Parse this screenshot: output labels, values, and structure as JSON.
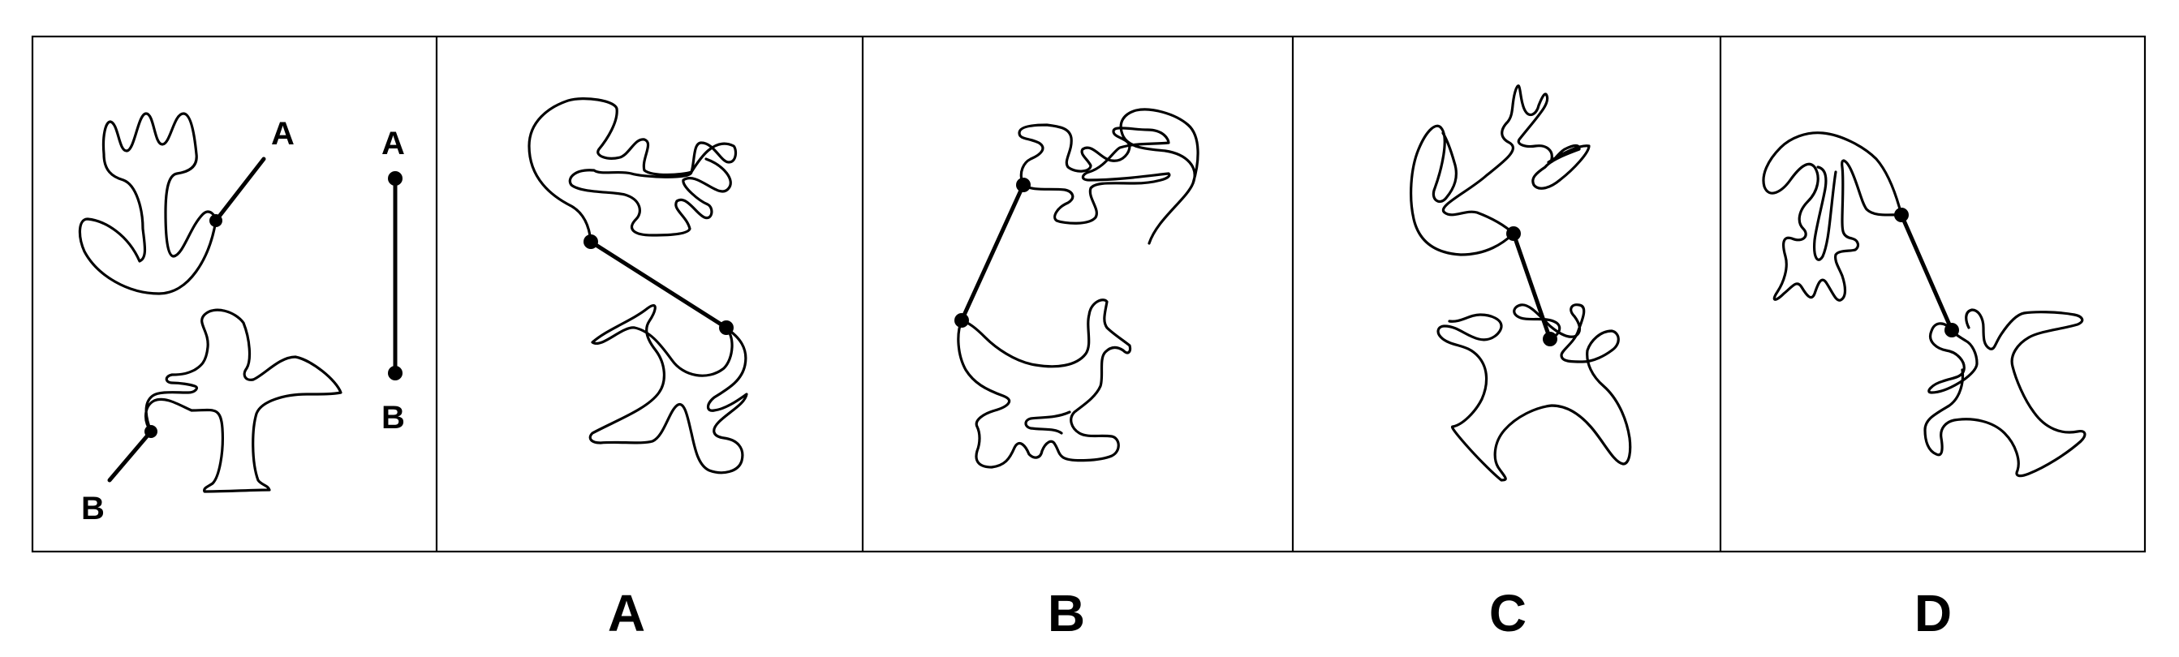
{
  "question_panel": {
    "point_a_label": "A",
    "point_b_label": "B",
    "ref_top_label": "A",
    "ref_bottom_label": "B"
  },
  "options": [
    {
      "id": "option-a",
      "label": "A"
    },
    {
      "id": "option-b",
      "label": "B"
    },
    {
      "id": "option-c",
      "label": "C"
    },
    {
      "id": "option-d",
      "label": "D"
    }
  ]
}
